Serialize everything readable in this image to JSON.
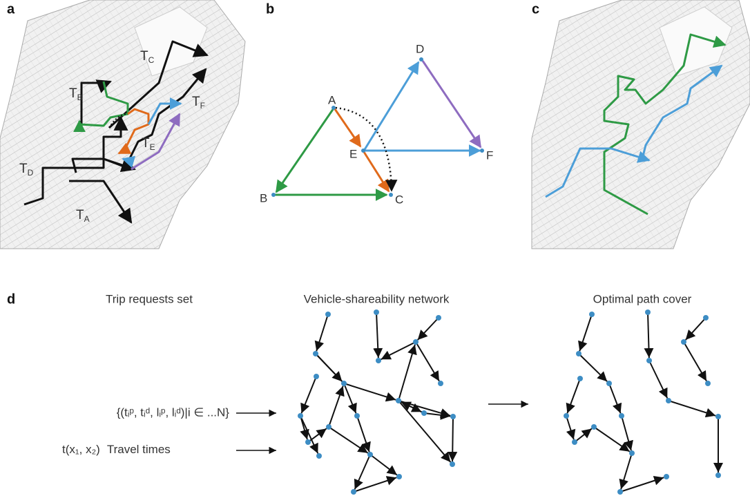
{
  "panel_letters": [
    "a",
    "b",
    "c",
    "d"
  ],
  "panel_a": {
    "trip_labels": [
      {
        "main": "T",
        "sub": "A"
      },
      {
        "main": "T",
        "sub": "B"
      },
      {
        "main": "T",
        "sub": "C"
      },
      {
        "main": "T",
        "sub": "D"
      },
      {
        "main": "T",
        "sub": "E"
      },
      {
        "main": "T",
        "sub": "F"
      }
    ]
  },
  "panel_b": {
    "nodes": [
      "A",
      "B",
      "C",
      "D",
      "E",
      "F"
    ]
  },
  "panel_d": {
    "headings": [
      "Trip requests set",
      "Vehicle-shareability network",
      "Optimal path cover"
    ],
    "inputs": [
      {
        "formula": "{(tᵢᵖ, tᵢᵈ, lᵢᵖ, lᵢᵈ)|i ∈ ...N}"
      },
      {
        "formula": "t(x₁, x₂)",
        "text": "Travel times"
      }
    ]
  }
}
